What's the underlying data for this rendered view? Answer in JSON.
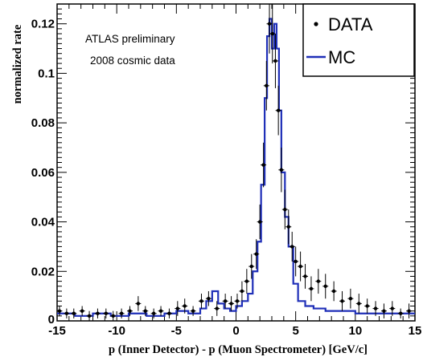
{
  "chart_data": {
    "type": "line",
    "title": "",
    "xlabel": "p (Inner Detector) - p (Muon Spectrometer) [GeV/c]",
    "ylabel": "normalized rate",
    "xlim": [
      -15,
      15
    ],
    "ylim": [
      0,
      0.128
    ],
    "x_ticks": [
      -15,
      -10,
      -5,
      0,
      5,
      10,
      15
    ],
    "y_ticks": [
      0.02,
      0.04,
      0.06,
      0.08,
      0.1,
      0.12
    ],
    "y_tick_labels": [
      "0.02",
      "0.04",
      "0.06",
      "0.08",
      "0.1",
      "0.12"
    ],
    "y_zero_label": "0",
    "grid": false,
    "legend_position": "top-right",
    "annotations": [
      "ATLAS preliminary",
      "2008 cosmic data"
    ],
    "series": [
      {
        "name": "DATA",
        "kind": "points-with-errors",
        "color": "#000000",
        "x": [
          -14.8,
          -14.2,
          -13.6,
          -12.9,
          -12.3,
          -11.6,
          -10.9,
          -10.3,
          -9.6,
          -8.9,
          -8.2,
          -7.6,
          -6.9,
          -6.3,
          -5.6,
          -4.9,
          -4.3,
          -3.6,
          -2.9,
          -2.3,
          -1.6,
          -0.9,
          -0.4,
          0.1,
          0.5,
          0.9,
          1.3,
          1.7,
          2.0,
          2.3,
          2.55,
          2.8,
          3.05,
          3.3,
          3.55,
          3.8,
          4.1,
          4.4,
          4.7,
          5.0,
          5.4,
          5.8,
          6.3,
          6.9,
          7.5,
          8.2,
          8.9,
          9.6,
          10.3,
          11.0,
          11.7,
          12.4,
          13.1,
          13.8,
          14.5
        ],
        "y": [
          0.004,
          0.003,
          0.003,
          0.004,
          0.002,
          0.003,
          0.003,
          0.002,
          0.003,
          0.004,
          0.007,
          0.004,
          0.003,
          0.004,
          0.003,
          0.005,
          0.006,
          0.004,
          0.008,
          0.009,
          0.005,
          0.008,
          0.007,
          0.008,
          0.012,
          0.016,
          0.022,
          0.027,
          0.04,
          0.063,
          0.095,
          0.12,
          0.116,
          0.105,
          0.085,
          0.061,
          0.045,
          0.038,
          0.03,
          0.024,
          0.022,
          0.018,
          0.013,
          0.016,
          0.014,
          0.012,
          0.008,
          0.009,
          0.007,
          0.006,
          0.005,
          0.004,
          0.005,
          0.003,
          0.004
        ],
        "err": [
          0.002,
          0.002,
          0.002,
          0.002,
          0.002,
          0.002,
          0.002,
          0.002,
          0.002,
          0.002,
          0.003,
          0.002,
          0.002,
          0.002,
          0.002,
          0.003,
          0.003,
          0.002,
          0.003,
          0.003,
          0.003,
          0.003,
          0.003,
          0.003,
          0.004,
          0.005,
          0.005,
          0.006,
          0.007,
          0.009,
          0.01,
          0.012,
          0.012,
          0.011,
          0.01,
          0.009,
          0.008,
          0.007,
          0.006,
          0.006,
          0.006,
          0.005,
          0.005,
          0.005,
          0.005,
          0.004,
          0.004,
          0.004,
          0.004,
          0.003,
          0.003,
          0.003,
          0.003,
          0.002,
          0.003
        ]
      },
      {
        "name": "MC",
        "kind": "histogram-step",
        "color": "#1f2fb8",
        "bin_edges": [
          -15,
          -13.5,
          -12,
          -10.5,
          -9,
          -7.5,
          -6,
          -5,
          -4,
          -3,
          -2.5,
          -2,
          -1.5,
          -1,
          -0.5,
          0,
          0.5,
          1,
          1.4,
          1.8,
          2.1,
          2.4,
          2.6,
          2.8,
          3.0,
          3.2,
          3.4,
          3.6,
          3.8,
          4.1,
          4.4,
          4.8,
          5.2,
          5.8,
          6.5,
          7.5,
          8.5,
          10,
          11.5,
          13,
          14.5,
          15
        ],
        "values": [
          0.003,
          0.002,
          0.003,
          0.002,
          0.003,
          0.002,
          0.003,
          0.004,
          0.003,
          0.005,
          0.008,
          0.012,
          0.007,
          0.005,
          0.004,
          0.006,
          0.008,
          0.011,
          0.02,
          0.032,
          0.055,
          0.09,
          0.115,
          0.122,
          0.11,
          0.12,
          0.11,
          0.085,
          0.06,
          0.042,
          0.03,
          0.015,
          0.008,
          0.006,
          0.005,
          0.004,
          0.004,
          0.003,
          0.003,
          0.003,
          0.003
        ]
      }
    ]
  }
}
